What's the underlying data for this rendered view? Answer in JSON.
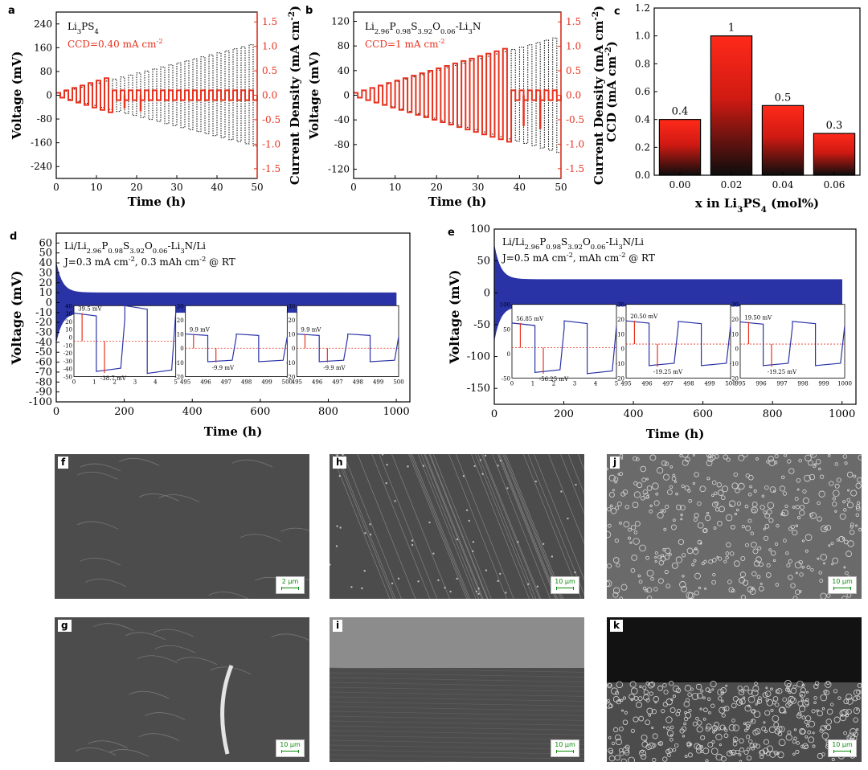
{
  "chart_data": [
    {
      "panel": "a",
      "type": "line",
      "series": [
        {
          "name": "Li3PS4",
          "legend_text": "Li3PS4",
          "role": "voltage"
        },
        {
          "name": "CCD=0.40 mA cm-2",
          "role": "current density"
        }
      ],
      "annotation": "CCD=0.40 mA cm-2",
      "xlabel": "Time (h)",
      "ylabel": "Voltage (mV)",
      "y2label": "Current Density (mA cm-2)",
      "xlim": [
        0,
        50
      ],
      "ylim": [
        -280,
        280
      ],
      "y2lim": [
        -1.7,
        1.7
      ],
      "xticks": [
        "0",
        "10",
        "20",
        "30",
        "40",
        "50"
      ],
      "yticks": [
        "240",
        "160",
        "80",
        "0",
        "-80",
        "-160",
        "-240"
      ],
      "y2ticks": [
        "1.5",
        "1.0",
        "0.5",
        "0.0",
        "-0.5",
        "-1.0",
        "-1.5"
      ],
      "cycles": {
        "steps": 25,
        "period_h": 2,
        "current_step": 0.05,
        "cc_density": 0.4,
        "amp_max": 170,
        "amp_short_at": 7
      },
      "colors": {
        "voltage": "#000000",
        "current": "#e8321e"
      }
    },
    {
      "panel": "b",
      "type": "line",
      "series": [
        {
          "name": "Li2.96P0.98S3.92O0.06-Li3N",
          "role": "voltage"
        },
        {
          "name": "CCD=1 mA cm-2",
          "role": "current density"
        }
      ],
      "legend_text": "Li2.96P0.98S3.92O0.06-Li3N",
      "annotation": "CCD=1 mA cm-2",
      "xlabel": "Time (h)",
      "ylabel": "Voltage (mV)",
      "y2label": "Current Density (mA cm-2)",
      "xlim": [
        0,
        50
      ],
      "ylim": [
        -135,
        135
      ],
      "y2lim": [
        -1.7,
        1.7
      ],
      "xticks": [
        "0",
        "10",
        "20",
        "30",
        "40",
        "50"
      ],
      "yticks": [
        "120",
        "80",
        "40",
        "0",
        "-40",
        "-80",
        "-120"
      ],
      "y2ticks": [
        "1.5",
        "1.0",
        "0.5",
        "0.0",
        "-0.5",
        "-1.0",
        "-1.5"
      ],
      "cycles": {
        "steps": 25,
        "period_h": 2,
        "current_step": 0.05,
        "cc_density": 1.0,
        "amp_max": 93,
        "amp_short_at": 19
      },
      "colors": {
        "voltage": "#000000",
        "current": "#e8321e"
      }
    },
    {
      "panel": "c",
      "type": "bar",
      "categories": [
        "0.00",
        "0.02",
        "0.04",
        "0.06"
      ],
      "values": [
        0.4,
        1,
        0.5,
        0.3
      ],
      "value_labels": [
        "0.4",
        "1",
        "0.5",
        "0.3"
      ],
      "xlabel": "x in Li3PS4 (mol%)",
      "ylabel": "CCD (mA cm-2)",
      "ylim": [
        0,
        1.2
      ],
      "yticks": [
        "0.0",
        "0.2",
        "0.4",
        "0.6",
        "0.8",
        "1.0",
        "1.2"
      ],
      "colors": {
        "top": "#ff2a1a",
        "bottom": "#0d0d0d"
      }
    },
    {
      "panel": "d",
      "type": "line",
      "legend_text": "Li/Li2.96P0.98S3.92O0.06-Li3N/Li",
      "condition": "J=0.3 mA cm-2, 0.3 mAh cm-2 @ RT",
      "xlabel": "Time (h)",
      "ylabel": "Voltage (mV)",
      "xlim": [
        0,
        1040
      ],
      "ylim": [
        -100,
        70
      ],
      "xticks": [
        "0",
        "200",
        "400",
        "600",
        "800",
        "1000"
      ],
      "yticks": [
        "60",
        "50",
        "40",
        "30",
        "20",
        "10",
        "0",
        "-10",
        "-20",
        "-30",
        "-40",
        "-50",
        "-60",
        "-70",
        "-80",
        "-90",
        "-100"
      ],
      "envelope": {
        "start": 40,
        "settle": 10,
        "end_h": 1000
      },
      "insets": [
        {
          "xlim": [
            0,
            5
          ],
          "ylim": [
            -50,
            50
          ],
          "xticks": [
            "0",
            "1",
            "2",
            "3",
            "4",
            "5"
          ],
          "yticks": [
            "40",
            "30",
            "20",
            "10",
            "0",
            "-10",
            "-20",
            "-30",
            "-40",
            "-50"
          ],
          "amps": [
            39.5,
            45,
            50,
            48
          ],
          "labels": [
            "39.5 mV",
            "-38.7 mV"
          ]
        },
        {
          "xlim": [
            495,
            500
          ],
          "ylim": [
            -20,
            30
          ],
          "xticks": [
            "495",
            "496",
            "497",
            "498",
            "499",
            "500"
          ],
          "yticks": [
            "30",
            "20",
            "10",
            "0",
            "-10",
            "-20"
          ],
          "amps": [
            10,
            10,
            10,
            10
          ],
          "labels": [
            "9.9 mV",
            "-9.9 mV"
          ]
        },
        {
          "xlim": [
            495,
            500
          ],
          "ylim": [
            -20,
            30
          ],
          "xticks": [
            "495",
            "496",
            "497",
            "498",
            "499",
            "500"
          ],
          "yticks": [
            "30",
            "20",
            "10",
            "0",
            "-10",
            "-20"
          ],
          "amps": [
            10,
            10,
            10,
            10
          ],
          "labels": [
            "9.9 mV",
            "-9.9 mV"
          ]
        }
      ],
      "colors": {
        "line": "#2a33a6",
        "ref": "#e8321e"
      }
    },
    {
      "panel": "e",
      "type": "line",
      "legend_text": "Li/Li2.96P0.98S3.92O0.06-Li3N/Li",
      "condition": "J=0.5 mA cm-2, mAh cm-2 @ RT",
      "xlabel": "Time (h)",
      "ylabel": "Voltage (mV)",
      "xlim": [
        0,
        1040
      ],
      "ylim": [
        -175,
        100
      ],
      "xticks": [
        "0",
        "200",
        "400",
        "600",
        "800",
        "1000"
      ],
      "yticks": [
        "100",
        "50",
        "0",
        "-50",
        "-100",
        "-150"
      ],
      "envelope": {
        "start": 75,
        "settle": 21,
        "end_h": 1000
      },
      "insets": [
        {
          "xlim": [
            0,
            5
          ],
          "ylim": [
            -70,
            100
          ],
          "xticks": [
            "0",
            "1",
            "2",
            "3",
            "4",
            "5"
          ],
          "yticks": [
            "100",
            "50",
            "0",
            "-50"
          ],
          "amps": [
            57,
            60,
            62,
            63
          ],
          "labels": [
            "56.85 mV",
            "-56.25 mV"
          ]
        },
        {
          "xlim": [
            495,
            500
          ],
          "ylim": [
            -30,
            35
          ],
          "xticks": [
            "495",
            "496",
            "497",
            "498",
            "499",
            "500"
          ],
          "yticks": [
            "30",
            "20",
            "10",
            "0",
            "-10",
            "-20"
          ],
          "amps": [
            20.5,
            20,
            20,
            20
          ],
          "labels": [
            "20.50 mV",
            "-19.25 mV"
          ]
        },
        {
          "xlim": [
            995,
            1000
          ],
          "ylim": [
            -30,
            35
          ],
          "xticks": [
            "995",
            "996",
            "997",
            "998",
            "999",
            "1000"
          ],
          "yticks": [
            "30",
            "20",
            "10",
            "0",
            "-10",
            "-20"
          ],
          "amps": [
            19.5,
            20,
            20,
            20
          ],
          "labels": [
            "19.50 mV",
            "-19.25 mV"
          ]
        }
      ],
      "colors": {
        "line": "#2a33a6",
        "ref": "#e8321e"
      }
    }
  ],
  "sem_images": [
    {
      "tag": "f",
      "scale": "2 μm",
      "style": "smooth"
    },
    {
      "tag": "h",
      "scale": "10 μm",
      "style": "scratched"
    },
    {
      "tag": "j",
      "scale": "10 μm",
      "style": "porous"
    },
    {
      "tag": "g",
      "scale": "10 μm",
      "style": "smooth-ridge"
    },
    {
      "tag": "i",
      "scale": "10 μm",
      "style": "cross-section"
    },
    {
      "tag": "k",
      "scale": "10 μm",
      "style": "dark-top-porous"
    }
  ]
}
